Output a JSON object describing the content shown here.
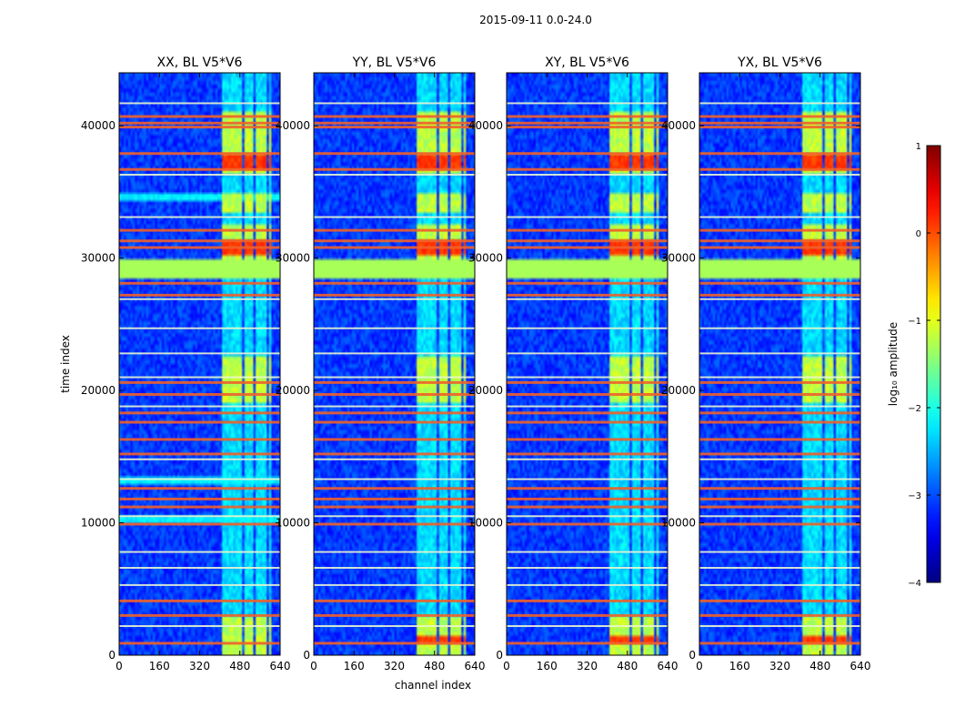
{
  "figure": {
    "suptitle": "2015-09-11 0.0-24.0"
  },
  "chart_data": {
    "type": "heatmap",
    "title": "2015-09-11 0.0-24.0",
    "xlabel": "channel index",
    "ylabel": "time index",
    "xlim": [
      0,
      640
    ],
    "ylim": [
      0,
      44000
    ],
    "xticks": [
      0,
      160,
      320,
      480,
      640
    ],
    "xtick_labels": [
      "0",
      "160",
      "320",
      "480",
      "640"
    ],
    "yticks": [
      0,
      10000,
      20000,
      30000,
      40000
    ],
    "ytick_labels": [
      "0",
      "10000",
      "20000",
      "30000",
      "40000"
    ],
    "panels": [
      {
        "title": "XX, BL V5*V6"
      },
      {
        "title": "YY, BL V5*V6"
      },
      {
        "title": "XY, BL V5*V6"
      },
      {
        "title": "YX, BL V5*V6"
      }
    ],
    "colorbar": {
      "label": "log₁₀ amplitude",
      "range": [
        -4,
        1
      ],
      "ticks": [
        1,
        0,
        -1,
        -2,
        -3,
        -4
      ],
      "tick_labels": [
        "1",
        "0",
        "−1",
        "−2",
        "−3",
        "−4"
      ],
      "colormap": "jet"
    },
    "features": {
      "background_level": -3.1,
      "band_channels": [
        [
          405,
          440
        ],
        [
          448,
          487
        ],
        [
          494,
          530
        ],
        [
          540,
          585
        ],
        [
          593,
          605
        ]
      ],
      "band_level_active": -1.2,
      "band_level_quiet": -2.3,
      "active_time_ranges": [
        [
          0,
          3000
        ],
        [
          19000,
          22500
        ],
        [
          30000,
          32500
        ],
        [
          33500,
          35000
        ],
        [
          36500,
          41000
        ]
      ],
      "flagged_time_range": [
        28500,
        29800
      ],
      "flagged_level": -1.3,
      "hot_time_ranges": [
        [
          36800,
          37700
        ],
        [
          30300,
          31300
        ],
        [
          1000,
          1400
        ]
      ],
      "rfi_rows_red": [
        40200,
        40700,
        39900,
        37900,
        36700,
        32100,
        31300,
        30800,
        28100,
        27200,
        20600,
        19700,
        18300,
        17600,
        16300,
        15200,
        12600,
        11800,
        11200,
        9900,
        4100,
        3000,
        900
      ],
      "rfi_rows_yellow": [
        41700,
        36300,
        33100,
        26900,
        24700,
        22800,
        21000,
        18800,
        14800,
        13300,
        10500,
        7800,
        6600,
        5300,
        2200
      ]
    }
  },
  "colors": {
    "frame": "#000000",
    "flagged_green": "#8efe6e"
  }
}
